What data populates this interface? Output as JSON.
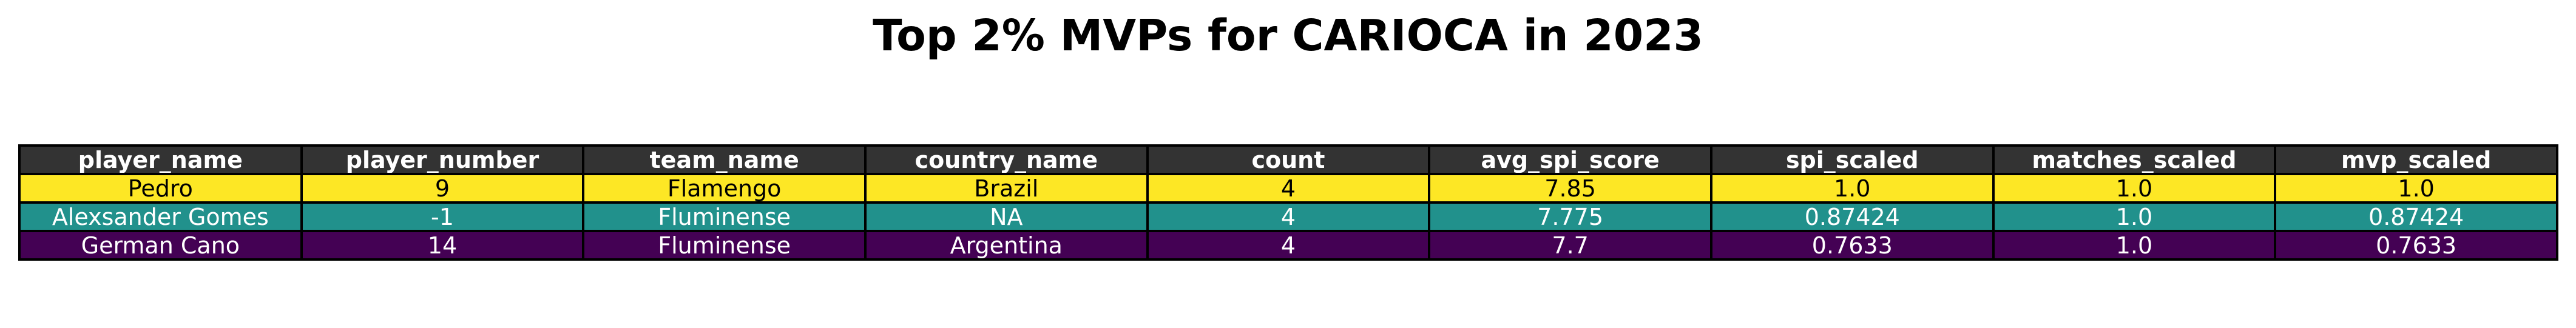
{
  "title": "Top 2% MVPs for CARIOCA in 2023",
  "colors": {
    "header_bg": "#333333",
    "header_text": "#ffffff",
    "row_1": "#fde725",
    "row_2": "#21918c",
    "row_3": "#440154"
  },
  "chart_data": {
    "type": "table",
    "title": "Top 2% MVPs for CARIOCA in 2023",
    "columns": [
      "player_name",
      "player_number",
      "team_name",
      "country_name",
      "count",
      "avg_spi_score",
      "spi_scaled",
      "matches_scaled",
      "mvp_scaled"
    ],
    "rows": [
      [
        "Pedro",
        "9",
        "Flamengo",
        "Brazil",
        "4",
        "7.85",
        "1.0",
        "1.0",
        "1.0"
      ],
      [
        "Alexsander Gomes",
        "-1",
        "Fluminense",
        "NA",
        "4",
        "7.775",
        "0.87424",
        "1.0",
        "0.87424"
      ],
      [
        "German Cano",
        "14",
        "Fluminense",
        "Argentina",
        "4",
        "7.7",
        "0.7633",
        "1.0",
        "0.7633"
      ]
    ]
  }
}
